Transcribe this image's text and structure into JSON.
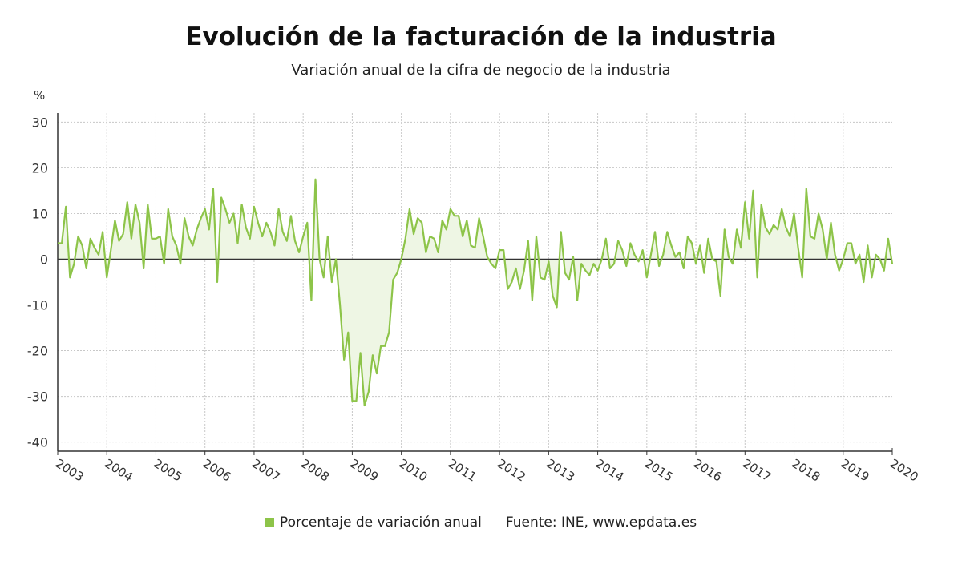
{
  "colors": {
    "series": "#8dc449",
    "fill": "#eef6e4",
    "grid": "#c8c8c8",
    "axis": "#333333"
  },
  "chart_data": {
    "type": "line",
    "title": "Evolución de la facturación de la industria",
    "subtitle": "Variación anual de la cifra de negocio de la industria",
    "ylabel": "%",
    "ylim": [
      -42,
      32
    ],
    "yticks": [
      30,
      20,
      10,
      0,
      -10,
      -20,
      -30,
      -40
    ],
    "xlim": [
      2003.0,
      2020.0
    ],
    "xticks": [
      "2003",
      "2004",
      "2005",
      "2006",
      "2007",
      "2008",
      "2009",
      "2010",
      "2011",
      "2012",
      "2013",
      "2014",
      "2015",
      "2016",
      "2017",
      "2018",
      "2019",
      "2020"
    ],
    "grid": true,
    "legend_position": "bottom",
    "series": [
      {
        "name": "Porcentaje de variación anual",
        "x_start": "2003-01",
        "frequency": "monthly",
        "values": [
          3.5,
          3.5,
          11.5,
          -4,
          -1,
          5,
          3,
          -2,
          4.5,
          2.5,
          1,
          6,
          -4,
          2,
          8.5,
          4,
          5.5,
          12.5,
          4.5,
          12,
          8,
          -2,
          12,
          4.5,
          4.5,
          5,
          -1,
          11,
          5,
          3,
          -1,
          9,
          5,
          3,
          6.5,
          9,
          11,
          6.5,
          15.5,
          -5,
          13.5,
          11,
          8,
          10,
          3.5,
          12,
          7,
          4.5,
          11.5,
          8,
          5,
          8,
          6,
          3,
          11,
          6,
          4,
          9.5,
          4,
          1.5,
          5,
          8,
          -9,
          17.5,
          0,
          -4,
          5,
          -5,
          0,
          -10,
          -22,
          -16,
          -31,
          -31,
          -20.5,
          -32,
          -29,
          -21,
          -25,
          -19,
          -19,
          -16,
          -4.5,
          -3,
          0,
          4.5,
          11,
          5.5,
          9,
          8,
          1.5,
          5,
          4.5,
          1.5,
          8.5,
          6.5,
          11,
          9.5,
          9.5,
          5,
          8.5,
          3,
          2.5,
          9,
          5,
          0.5,
          -1,
          -2,
          2,
          2,
          -6.5,
          -5,
          -2,
          -6.5,
          -2.5,
          4,
          -9,
          5,
          -4,
          -4.5,
          -0.5,
          -8,
          -10.5,
          6,
          -3,
          -4.5,
          0.5,
          -9,
          -1,
          -2.5,
          -3.5,
          -1,
          -2.5,
          0,
          4.5,
          -2,
          -1,
          4,
          2,
          -1.5,
          3.5,
          1,
          -0.5,
          2,
          -4,
          1,
          6,
          -1.5,
          1,
          6,
          3,
          0.5,
          1.5,
          -2,
          5,
          3.5,
          -1,
          3,
          -3,
          4.5,
          0,
          -0.5,
          -8,
          6.5,
          0.5,
          -1,
          6.5,
          2.5,
          12.5,
          4.5,
          15,
          -4,
          12,
          7,
          5.5,
          7.5,
          6.5,
          11,
          7,
          5,
          10,
          2.5,
          -4,
          15.5,
          5,
          4.5,
          10,
          6.5,
          0,
          8,
          1,
          -2.5,
          0,
          3.5,
          3.5,
          -1,
          1,
          -5,
          3,
          -4,
          1,
          0,
          -2.5,
          4.5,
          -1
        ]
      }
    ]
  },
  "legend": {
    "label": "Porcentaje de variación anual",
    "source": "Fuente: INE, www.epdata.es"
  }
}
